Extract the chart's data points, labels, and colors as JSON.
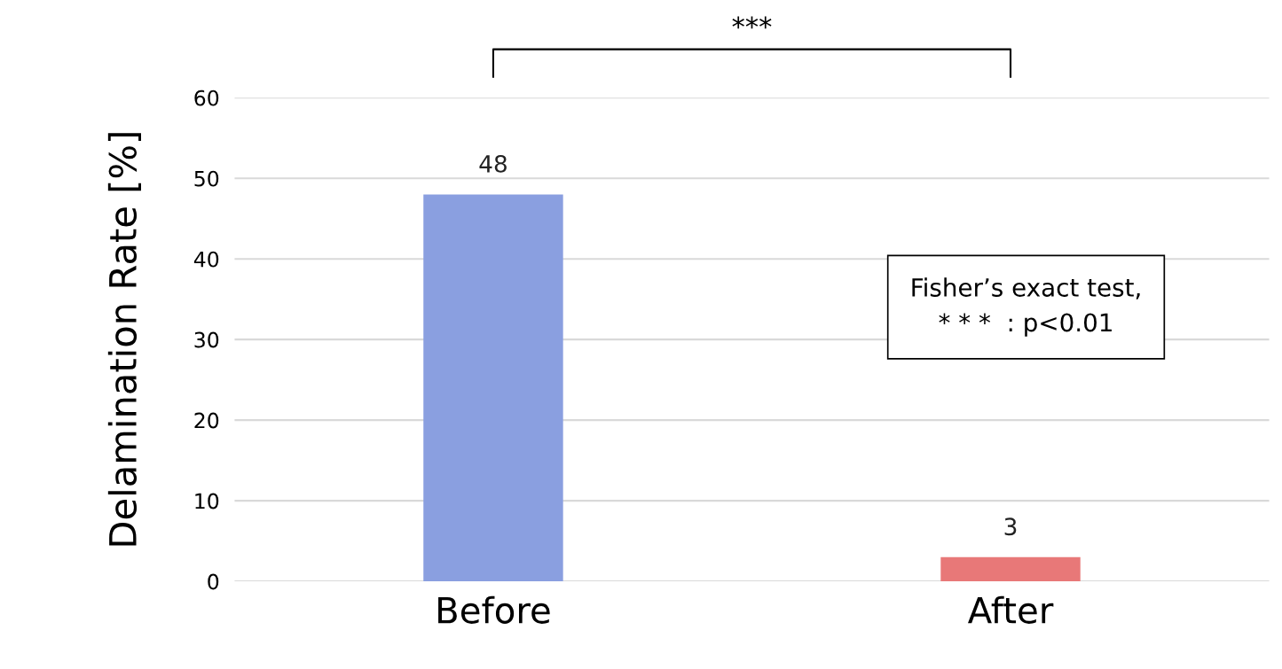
{
  "chart_data": {
    "type": "bar",
    "ylabel": "Delamination Rate [%]",
    "categories": [
      "Before",
      "After"
    ],
    "values": [
      48,
      3
    ],
    "colors": [
      "#8a9fe0",
      "#e87878"
    ],
    "ylim": [
      0,
      60
    ],
    "yticks": [
      0,
      10,
      20,
      30,
      40,
      50,
      60
    ],
    "grid": "y",
    "data_labels": true,
    "annotations": [
      "***",
      "Fisher’s exact test,\n* * *  : p<0.01"
    ]
  }
}
